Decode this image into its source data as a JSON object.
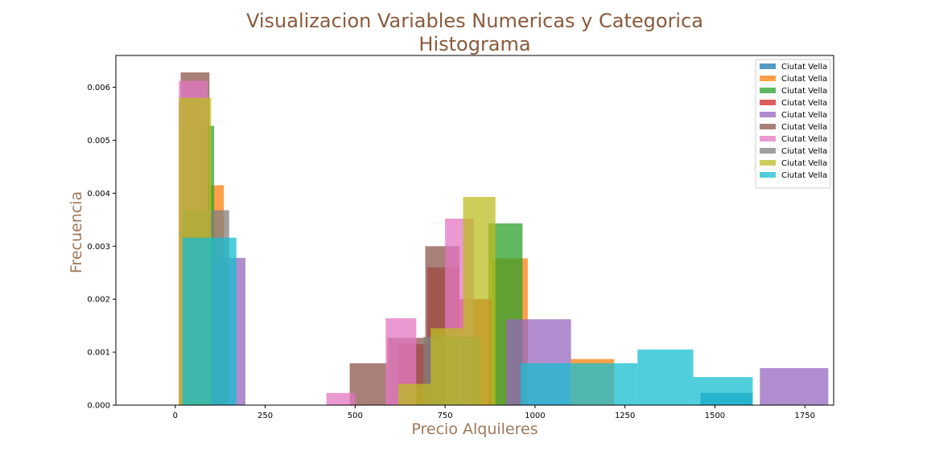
{
  "chart_data": {
    "type": "histogram",
    "title": [
      "Visualizacion Variables Numericas y Categorica",
      "Histograma"
    ],
    "xlabel": "Precio Alquileres",
    "ylabel": "Frecuencia",
    "xlim": [
      -165,
      1830
    ],
    "ylim": [
      0,
      0.0066
    ],
    "xticks": [
      0,
      250,
      500,
      750,
      1000,
      1250,
      1500,
      1750
    ],
    "xtick_labels": [
      "0",
      "250",
      "500",
      "750",
      "1000",
      "1250",
      "1500",
      "1750"
    ],
    "yticks": [
      0,
      0.001,
      0.002,
      0.003,
      0.004,
      0.005,
      0.006
    ],
    "ytick_labels": [
      "0.000",
      "0.001",
      "0.002",
      "0.003",
      "0.004",
      "0.005",
      "0.006"
    ],
    "grid": false,
    "legend_position": "top-right",
    "alpha": 0.75,
    "series": [
      {
        "name": "Ciutat Vella",
        "color": "#1f77b4",
        "bins": [
          {
            "x0": 1460,
            "x1": 1605,
            "value": 0.00023
          }
        ]
      },
      {
        "name": "Ciutat Vella",
        "color": "#ff7f0e",
        "bins": [
          {
            "x0": 10,
            "x1": 70,
            "value": 0.0057
          },
          {
            "x0": 70,
            "x1": 135,
            "value": 0.00415
          },
          {
            "x0": 880,
            "x1": 980,
            "value": 0.00277
          },
          {
            "x0": 1100,
            "x1": 1220,
            "value": 0.00087
          }
        ]
      },
      {
        "name": "Ciutat Vella",
        "color": "#2ca02c",
        "bins": [
          {
            "x0": 15,
            "x1": 108,
            "value": 0.00527
          },
          {
            "x0": 870,
            "x1": 965,
            "value": 0.00343
          }
        ]
      },
      {
        "name": "Ciutat Vella",
        "color": "#d62728",
        "bins": [
          {
            "x0": 620,
            "x1": 700,
            "value": 0.00115
          },
          {
            "x0": 700,
            "x1": 790,
            "value": 0.0026
          },
          {
            "x0": 790,
            "x1": 880,
            "value": 0.002
          }
        ]
      },
      {
        "name": "Ciutat Vella",
        "color": "#9467bd",
        "bins": [
          {
            "x0": 95,
            "x1": 195,
            "value": 0.00278
          },
          {
            "x0": 920,
            "x1": 1100,
            "value": 0.00162
          },
          {
            "x0": 1625,
            "x1": 1815,
            "value": 0.0007
          }
        ]
      },
      {
        "name": "Ciutat Vella",
        "color": "#8c564b",
        "bins": [
          {
            "x0": 15,
            "x1": 95,
            "value": 0.00628
          },
          {
            "x0": 485,
            "x1": 590,
            "value": 0.00079
          },
          {
            "x0": 590,
            "x1": 695,
            "value": 0.00127
          },
          {
            "x0": 695,
            "x1": 790,
            "value": 0.003
          }
        ]
      },
      {
        "name": "Ciutat Vella",
        "color": "#e377c2",
        "bins": [
          {
            "x0": 10,
            "x1": 90,
            "value": 0.00612
          },
          {
            "x0": 420,
            "x1": 500,
            "value": 0.00023
          },
          {
            "x0": 585,
            "x1": 670,
            "value": 0.00164
          },
          {
            "x0": 750,
            "x1": 830,
            "value": 0.00352
          }
        ]
      },
      {
        "name": "Ciutat Vella",
        "color": "#7f7f7f",
        "bins": [
          {
            "x0": 20,
            "x1": 150,
            "value": 0.00368
          },
          {
            "x0": 690,
            "x1": 850,
            "value": 0.00129
          }
        ]
      },
      {
        "name": "Ciutat Vella",
        "color": "#bcbd22",
        "bins": [
          {
            "x0": 10,
            "x1": 100,
            "value": 0.0058
          },
          {
            "x0": 620,
            "x1": 710,
            "value": 0.0004
          },
          {
            "x0": 710,
            "x1": 800,
            "value": 0.00145
          },
          {
            "x0": 800,
            "x1": 890,
            "value": 0.00393
          }
        ]
      },
      {
        "name": "Ciutat Vella",
        "color": "#17becf",
        "bins": [
          {
            "x0": 20,
            "x1": 170,
            "value": 0.00316
          },
          {
            "x0": 960,
            "x1": 1100,
            "value": 0.00079
          },
          {
            "x0": 1100,
            "x1": 1285,
            "value": 0.00079
          },
          {
            "x0": 1285,
            "x1": 1440,
            "value": 0.00105
          },
          {
            "x0": 1440,
            "x1": 1605,
            "value": 0.00053
          }
        ]
      }
    ]
  }
}
